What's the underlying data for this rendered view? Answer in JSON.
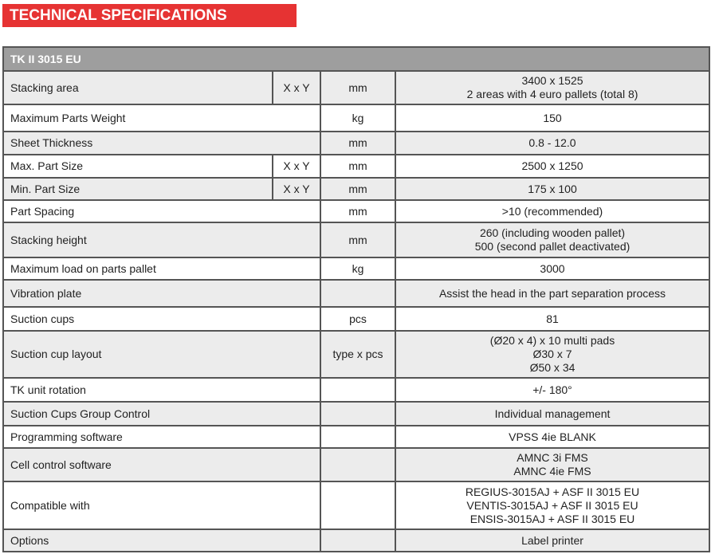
{
  "title": "TECHNICAL SPECIFICATIONS",
  "table": {
    "model": "TK II 3015 EU",
    "rows": [
      {
        "label": "Stacking area",
        "sub": "X x Y",
        "unit": "mm",
        "value": [
          "3400 x 1525",
          "2 areas with 4 euro pallets (total 8)"
        ]
      },
      {
        "label": "Maximum Parts Weight",
        "sub": "",
        "unit": "kg",
        "value": [
          "150"
        ]
      },
      {
        "label": "Sheet Thickness",
        "sub": "",
        "unit": "mm",
        "value": [
          "0.8 - 12.0"
        ]
      },
      {
        "label": "Max. Part Size",
        "sub": "X x Y",
        "unit": "mm",
        "value": [
          "2500 x 1250"
        ]
      },
      {
        "label": "Min. Part Size",
        "sub": "X x Y",
        "unit": "mm",
        "value": [
          "175 x 100"
        ]
      },
      {
        "label": "Part Spacing",
        "sub": "",
        "unit": "mm",
        "value": [
          ">10 (recommended)"
        ]
      },
      {
        "label": "Stacking height",
        "sub": "",
        "unit": "mm",
        "value": [
          "260 (including wooden pallet)",
          "500 (second pallet deactivated)"
        ]
      },
      {
        "label": "Maximum load on parts pallet",
        "sub": "",
        "unit": "kg",
        "value": [
          "3000"
        ]
      },
      {
        "label": "Vibration plate",
        "sub": "",
        "unit": "",
        "value": [
          "Assist the head in the part separation process"
        ]
      },
      {
        "label": "Suction cups",
        "sub": "",
        "unit": "pcs",
        "value": [
          "81"
        ]
      },
      {
        "label": "Suction cup layout",
        "sub": "",
        "unit": "type x pcs",
        "value": [
          "(Ø20 x 4) x 10 multi pads",
          "Ø30 x 7",
          "Ø50 x 34"
        ]
      },
      {
        "label": "TK unit rotation",
        "sub": "",
        "unit": "",
        "value": [
          "+/- 180°"
        ]
      },
      {
        "label": "Suction Cups Group Control",
        "sub": "",
        "unit": "",
        "value": [
          "Individual management"
        ]
      },
      {
        "label": "Programming software",
        "sub": "",
        "unit": "",
        "value": [
          "VPSS 4ie BLANK"
        ]
      },
      {
        "label": "Cell control software",
        "sub": "",
        "unit": "",
        "value": [
          "AMNC 3i FMS",
          "AMNC 4ie FMS"
        ]
      },
      {
        "label": "Compatible with",
        "sub": "",
        "unit": "",
        "value": [
          "REGIUS-3015AJ + ASF II 3015 EU",
          "VENTIS-3015AJ + ASF II 3015 EU",
          "ENSIS-3015AJ + ASF II 3015 EU"
        ]
      },
      {
        "label": "Options",
        "sub": "",
        "unit": "",
        "value": [
          "Label printer"
        ]
      }
    ]
  }
}
